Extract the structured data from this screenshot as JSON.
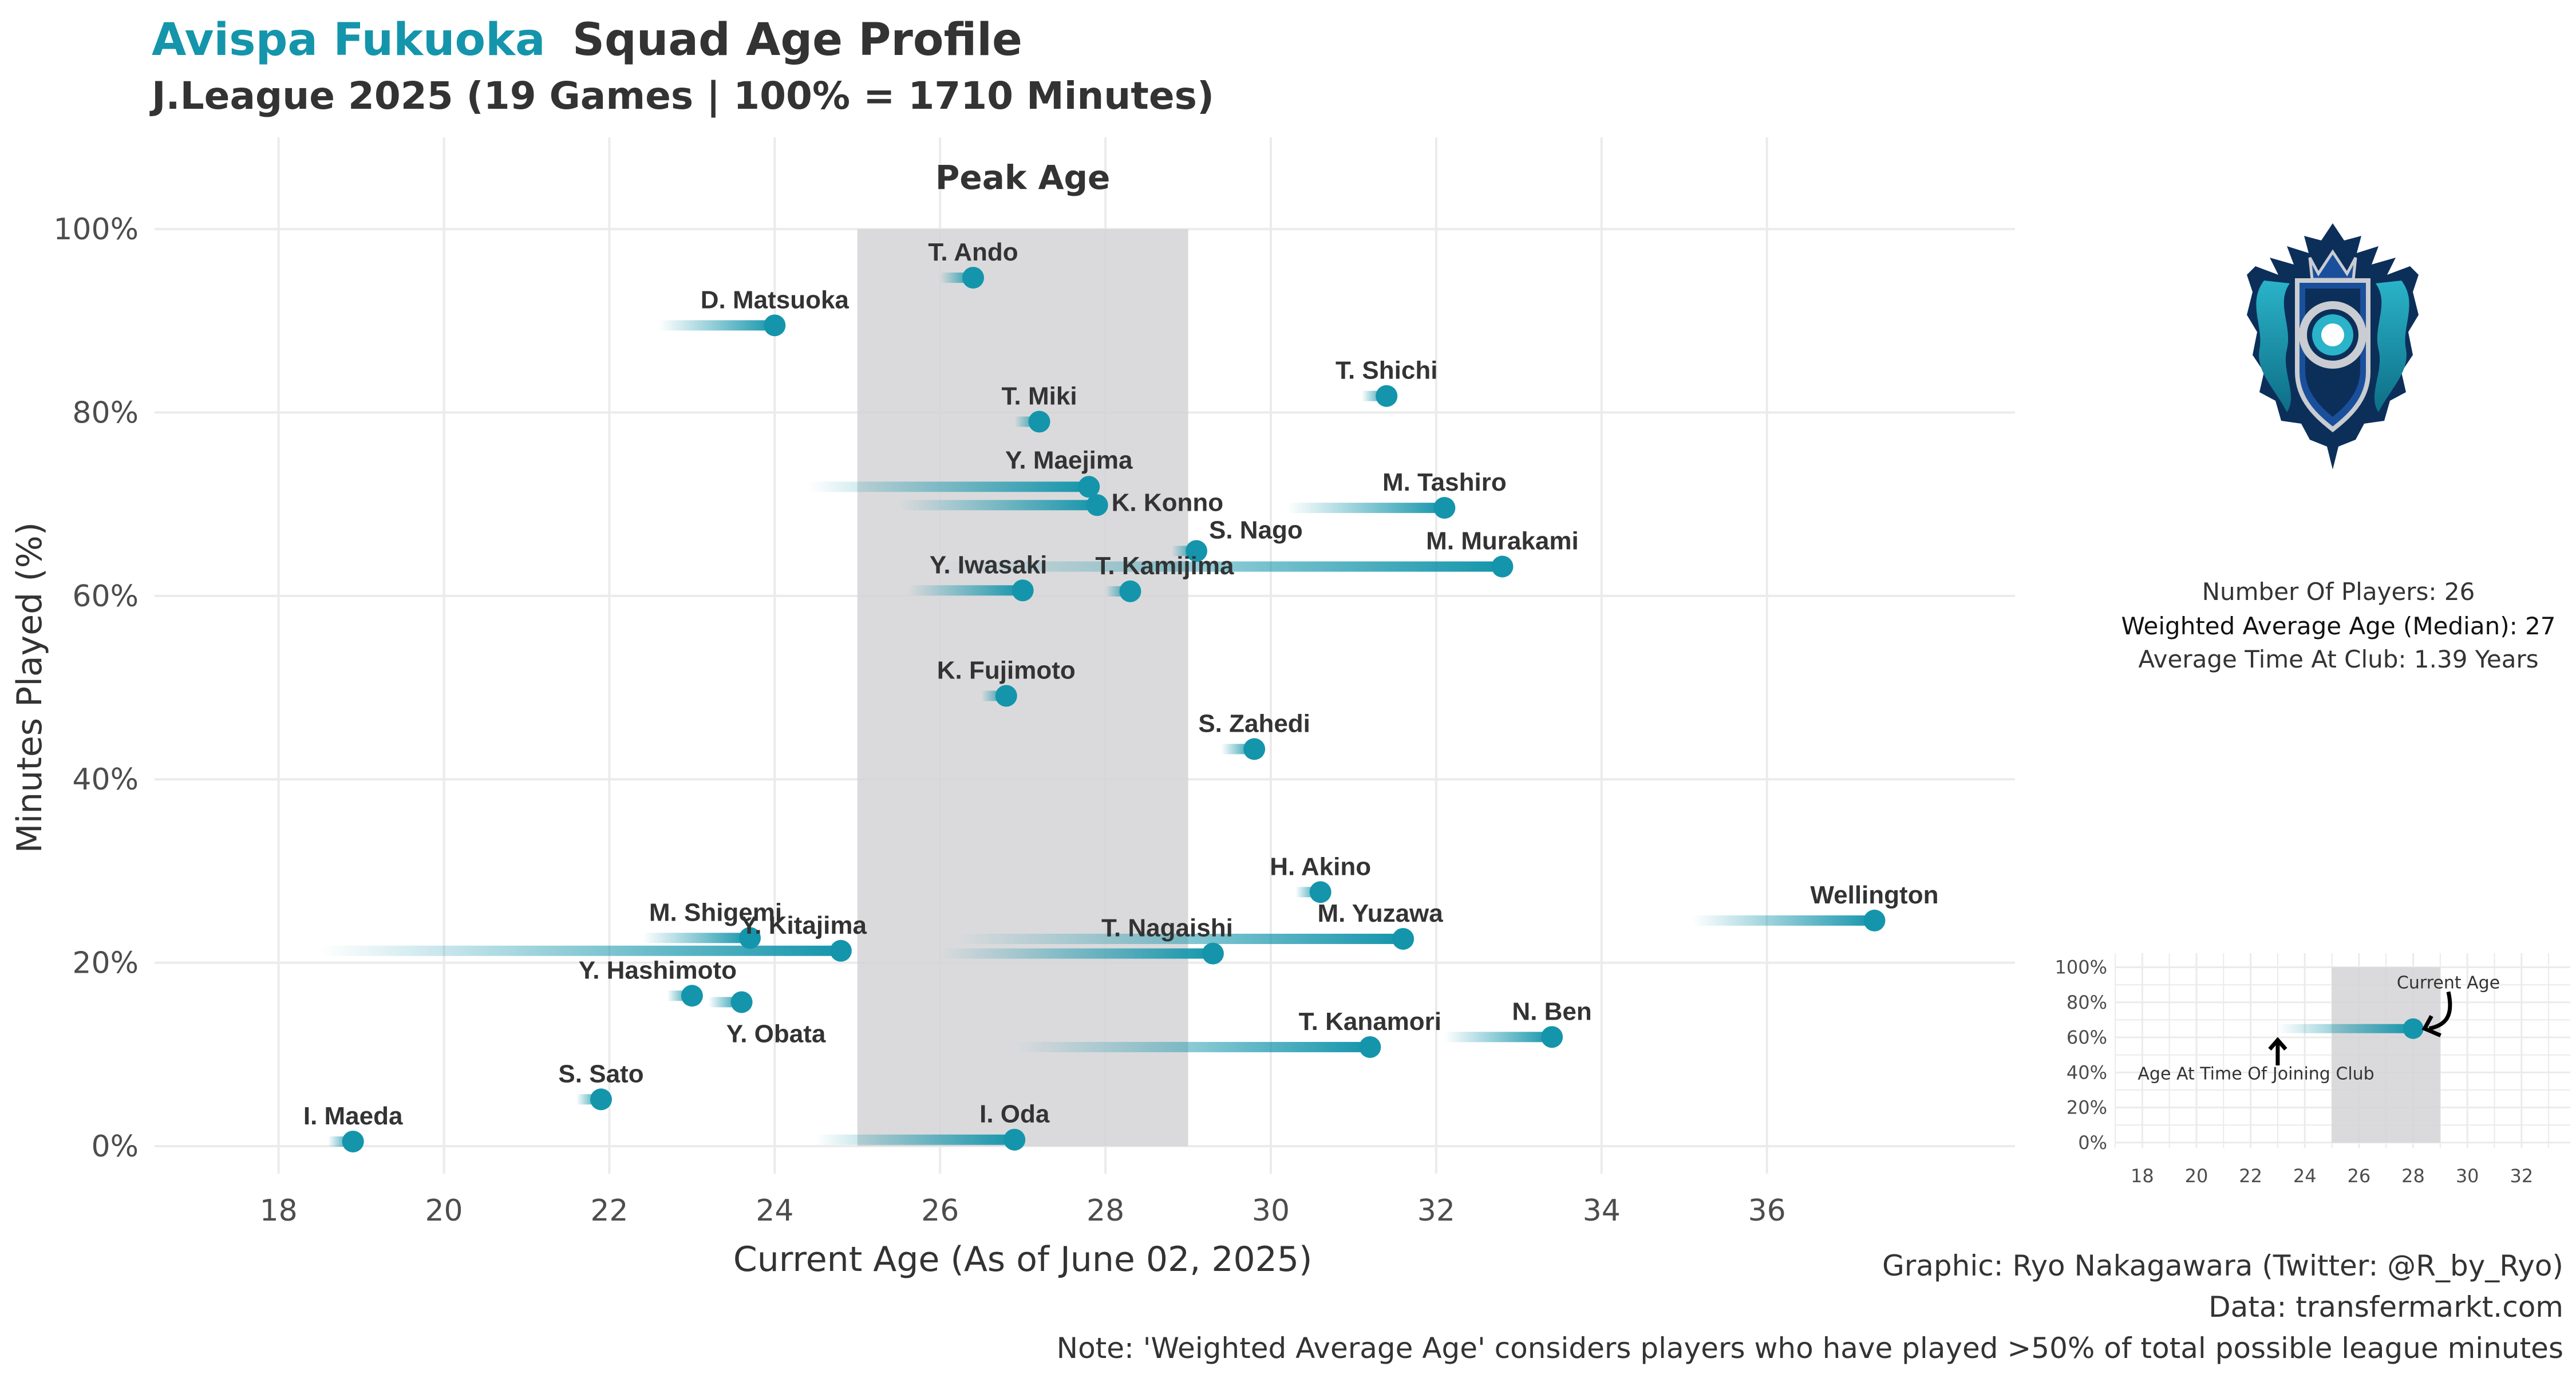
{
  "header": {
    "team": "Avispa Fukuoka",
    "title_rest": "Squad Age Profile",
    "subtitle": "J.League 2025 (19 Games | 100% = 1710 Minutes)"
  },
  "colors": {
    "accent": "#1495ab",
    "peak_band": "#d3d4d6",
    "text": "#333333",
    "grid": "#ebebeb"
  },
  "chart_data": {
    "type": "scatter",
    "xlabel": "Current Age (As of June 02, 2025)",
    "ylabel": "Minutes Played (%)",
    "xlim": [
      16.5,
      39.0
    ],
    "ylim": [
      -3,
      110
    ],
    "x_ticks": [
      18,
      20,
      22,
      24,
      26,
      28,
      30,
      32,
      34,
      36
    ],
    "y_ticks": [
      0,
      20,
      40,
      60,
      80,
      100
    ],
    "y_tick_labels": [
      "0%",
      "20%",
      "40%",
      "60%",
      "80%",
      "100%"
    ],
    "peak_band": {
      "label": "Peak Age",
      "from": 25,
      "to": 29,
      "y_top": 100
    },
    "grid": true,
    "points": [
      {
        "name": "T. Ando",
        "age": 26.4,
        "joined": 26.0,
        "minutes": 94.7
      },
      {
        "name": "D. Matsuoka",
        "age": 24.0,
        "joined": 22.6,
        "minutes": 89.5
      },
      {
        "name": "T. Shichi",
        "age": 31.4,
        "joined": 31.1,
        "minutes": 81.8
      },
      {
        "name": "T. Miki",
        "age": 27.2,
        "joined": 26.9,
        "minutes": 79.0
      },
      {
        "name": "Y. Maejima",
        "age": 27.8,
        "joined": 24.4,
        "minutes": 71.9
      },
      {
        "name": "K. Konno",
        "age": 27.9,
        "joined": 25.5,
        "minutes": 69.9
      },
      {
        "name": "M. Tashiro",
        "age": 32.1,
        "joined": 30.2,
        "minutes": 69.6
      },
      {
        "name": "S. Nago",
        "age": 29.1,
        "joined": 28.8,
        "minutes": 64.9
      },
      {
        "name": "M. Murakami",
        "age": 32.8,
        "joined": 26.0,
        "minutes": 63.2
      },
      {
        "name": "Y. Iwasaki",
        "age": 27.0,
        "joined": 25.6,
        "minutes": 60.6
      },
      {
        "name": "T. Kamijima",
        "age": 28.3,
        "joined": 28.0,
        "minutes": 60.5
      },
      {
        "name": "K. Fujimoto",
        "age": 26.8,
        "joined": 26.5,
        "minutes": 49.1
      },
      {
        "name": "S. Zahedi",
        "age": 29.8,
        "joined": 29.4,
        "minutes": 43.3
      },
      {
        "name": "H. Akino",
        "age": 30.6,
        "joined": 30.3,
        "minutes": 27.7
      },
      {
        "name": "Wellington",
        "age": 37.3,
        "joined": 35.1,
        "minutes": 24.6
      },
      {
        "name": "M. Shigemi",
        "age": 23.7,
        "joined": 22.4,
        "minutes": 22.7
      },
      {
        "name": "M. Yuzawa",
        "age": 31.6,
        "joined": 26.2,
        "minutes": 22.6
      },
      {
        "name": "Y. Kitajima",
        "age": 24.8,
        "joined": 18.5,
        "minutes": 21.3
      },
      {
        "name": "T. Nagaishi",
        "age": 29.3,
        "joined": 26.0,
        "minutes": 21.0
      },
      {
        "name": "Y. Hashimoto",
        "age": 23.0,
        "joined": 22.7,
        "minutes": 16.4
      },
      {
        "name": "Y. Obata",
        "age": 23.6,
        "joined": 23.2,
        "minutes": 15.7
      },
      {
        "name": "N. Ben",
        "age": 33.4,
        "joined": 32.1,
        "minutes": 11.9
      },
      {
        "name": "T. Kanamori",
        "age": 31.2,
        "joined": 26.9,
        "minutes": 10.8
      },
      {
        "name": "S. Sato",
        "age": 21.9,
        "joined": 21.6,
        "minutes": 5.1
      },
      {
        "name": "I. Maeda",
        "age": 18.9,
        "joined": 18.6,
        "minutes": 0.5
      },
      {
        "name": "I. Oda",
        "age": 26.9,
        "joined": 24.5,
        "minutes": 0.7
      }
    ]
  },
  "summary": {
    "line1": "Number Of Players: 26",
    "line2_label": "Weighted Average Age (Median):",
    "line2_value": " 27",
    "line3": "Average Time At Club: 1.39 Years"
  },
  "legend_inset": {
    "x_ticks": [
      18,
      20,
      22,
      24,
      26,
      28,
      30,
      32
    ],
    "y_tick_labels": [
      "0%",
      "20%",
      "40%",
      "60%",
      "80%",
      "100%"
    ],
    "example": {
      "joined": 23,
      "current": 28,
      "minutes": 65
    },
    "peak_from": 25,
    "peak_to": 29,
    "current_label": "Current Age",
    "joining_label": "Age At Time Of Joining Club"
  },
  "footer": {
    "line1": "Graphic: Ryo Nakagawara (Twitter: @R_by_Ryo)",
    "line2": "Data: transfermarkt.com",
    "line3": "Note: 'Weighted Average Age' considers players who have played >50% of total possible league minutes"
  }
}
